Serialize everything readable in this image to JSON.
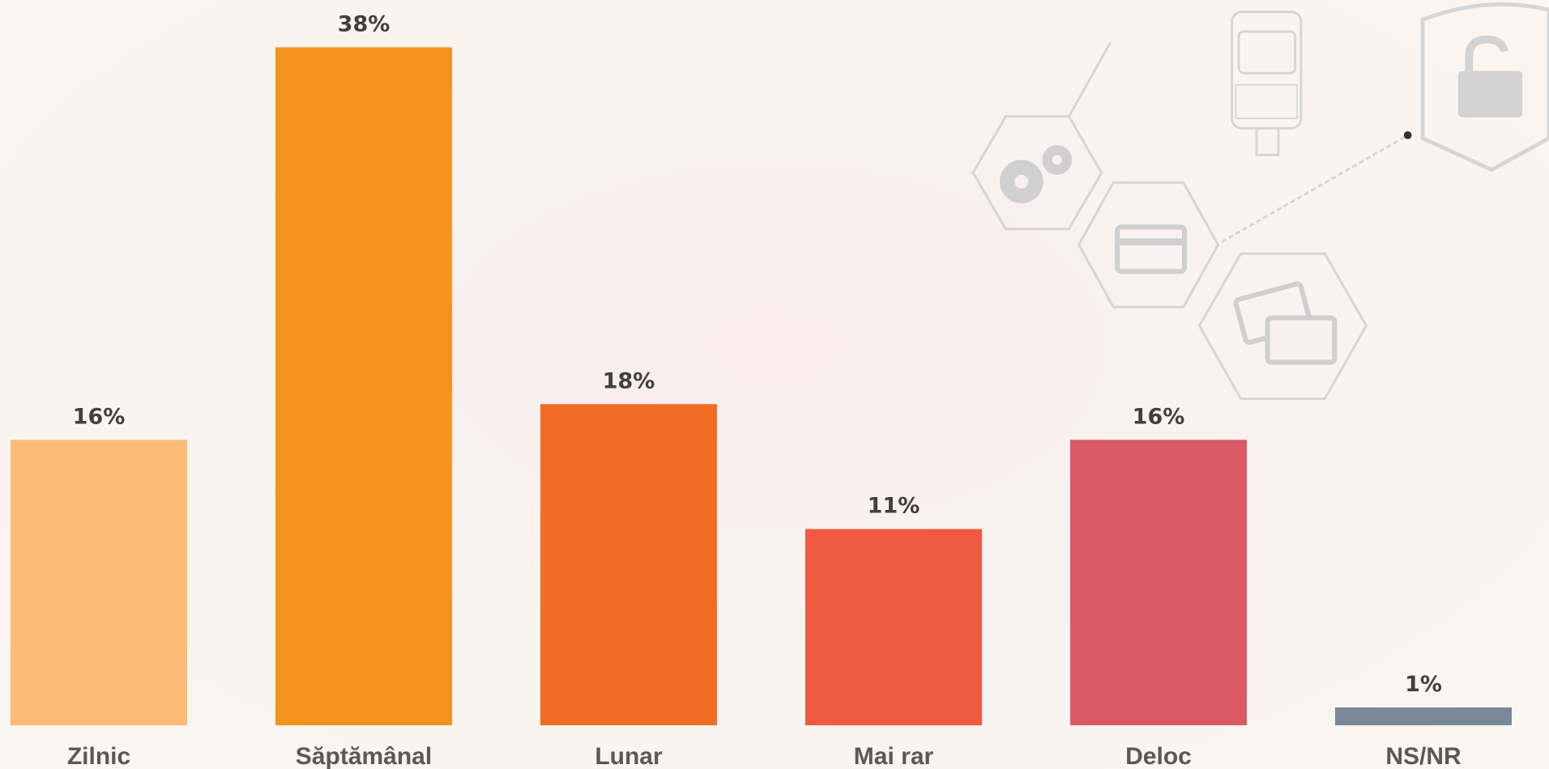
{
  "chart_data": {
    "type": "bar",
    "categories": [
      "Zilnic",
      "Săptămânal",
      "Lunar",
      "Mai rar",
      "Deloc",
      "NS/NR"
    ],
    "values": [
      16,
      38,
      18,
      11,
      16,
      1
    ],
    "value_labels": [
      "16%",
      "38%",
      "18%",
      "11%",
      "16%",
      "1%"
    ],
    "colors": [
      "#fbbb77",
      "#f5931f",
      "#f06e23",
      "#ef5a40",
      "#d95a66",
      "#7b8898"
    ]
  }
}
